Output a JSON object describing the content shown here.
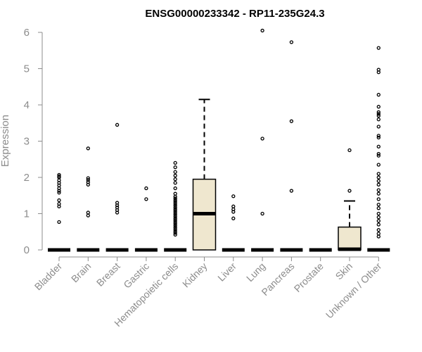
{
  "chart_data": {
    "type": "box",
    "title": "ENSG00000233342 - RP11-235G24.3",
    "xlabel": "",
    "ylabel": "Expression",
    "ylim": [
      0,
      6
    ],
    "yticks": [
      0,
      1,
      2,
      3,
      4,
      5,
      6
    ],
    "grid": false,
    "legend": "none",
    "colors": {
      "box_fill": "#efe7cf",
      "line": "#000000",
      "axis_text": "#8c8c8c"
    },
    "categories": [
      "Bladder",
      "Brain",
      "Breast",
      "Gastric",
      "Hematopoietic cells",
      "Kidney",
      "Liver",
      "Lung",
      "Pancreas",
      "Prostate",
      "Skin",
      "Unknown / Other"
    ],
    "boxes": [
      {
        "category": "Bladder",
        "q1": 0,
        "median": 0,
        "q3": 0,
        "whisker_low": 0,
        "whisker_high": 0,
        "outliers": [
          0.77,
          1.2,
          1.27,
          1.37,
          1.58,
          1.63,
          1.7,
          1.78,
          1.85,
          1.92,
          2.0,
          2.03,
          2.07
        ]
      },
      {
        "category": "Brain",
        "q1": 0,
        "median": 0,
        "q3": 0,
        "whisker_low": 0,
        "whisker_high": 0,
        "outliers": [
          0.95,
          1.03,
          1.8,
          1.87,
          1.93,
          1.98,
          2.8
        ]
      },
      {
        "category": "Breast",
        "q1": 0,
        "median": 0,
        "q3": 0,
        "whisker_low": 0,
        "whisker_high": 0,
        "outliers": [
          1.03,
          1.1,
          1.17,
          1.23,
          1.3,
          3.45
        ]
      },
      {
        "category": "Gastric",
        "q1": 0,
        "median": 0,
        "q3": 0,
        "whisker_low": 0,
        "whisker_high": 0,
        "outliers": [
          1.4,
          1.7
        ]
      },
      {
        "category": "Hematopoietic cells",
        "q1": 0,
        "median": 0,
        "q3": 0,
        "whisker_low": 0,
        "whisker_high": 0,
        "outliers": [
          0.42,
          0.47,
          0.52,
          0.57,
          0.62,
          0.67,
          0.72,
          0.77,
          0.82,
          0.87,
          0.92,
          0.97,
          1.02,
          1.07,
          1.12,
          1.17,
          1.22,
          1.27,
          1.32,
          1.37,
          1.42,
          1.47,
          1.55,
          1.7,
          1.85,
          1.95,
          2.05,
          2.15,
          2.28,
          2.4
        ]
      },
      {
        "category": "Kidney",
        "q1": 0,
        "median": 1.0,
        "q3": 1.95,
        "whisker_low": 0,
        "whisker_high": 4.15,
        "outliers": []
      },
      {
        "category": "Liver",
        "q1": 0,
        "median": 0,
        "q3": 0,
        "whisker_low": 0,
        "whisker_high": 0,
        "outliers": [
          0.87,
          1.05,
          1.12,
          1.2,
          1.48
        ]
      },
      {
        "category": "Lung",
        "q1": 0,
        "median": 0,
        "q3": 0,
        "whisker_low": 0,
        "whisker_high": 0,
        "outliers": [
          1.0,
          3.07,
          6.05
        ]
      },
      {
        "category": "Pancreas",
        "q1": 0,
        "median": 0,
        "q3": 0,
        "whisker_low": 0,
        "whisker_high": 0,
        "outliers": [
          1.63,
          3.55,
          5.73
        ]
      },
      {
        "category": "Prostate",
        "q1": 0,
        "median": 0,
        "q3": 0,
        "whisker_low": 0,
        "whisker_high": 0,
        "outliers": []
      },
      {
        "category": "Skin",
        "q1": 0,
        "median": 0.02,
        "q3": 0.63,
        "whisker_low": 0,
        "whisker_high": 1.35,
        "outliers": [
          1.63,
          2.75
        ]
      },
      {
        "category": "Unknown / Other",
        "q1": 0,
        "median": 0,
        "q3": 0,
        "whisker_low": 0,
        "whisker_high": 0,
        "outliers": [
          0.37,
          0.45,
          0.55,
          0.7,
          0.8,
          0.9,
          1.0,
          1.15,
          1.25,
          1.4,
          1.55,
          1.65,
          1.8,
          1.9,
          2.0,
          2.1,
          2.35,
          2.6,
          2.65,
          2.85,
          3.1,
          3.15,
          3.4,
          3.6,
          3.7,
          3.75,
          3.8,
          3.95,
          4.28,
          4.9,
          4.97,
          5.57
        ]
      }
    ]
  }
}
